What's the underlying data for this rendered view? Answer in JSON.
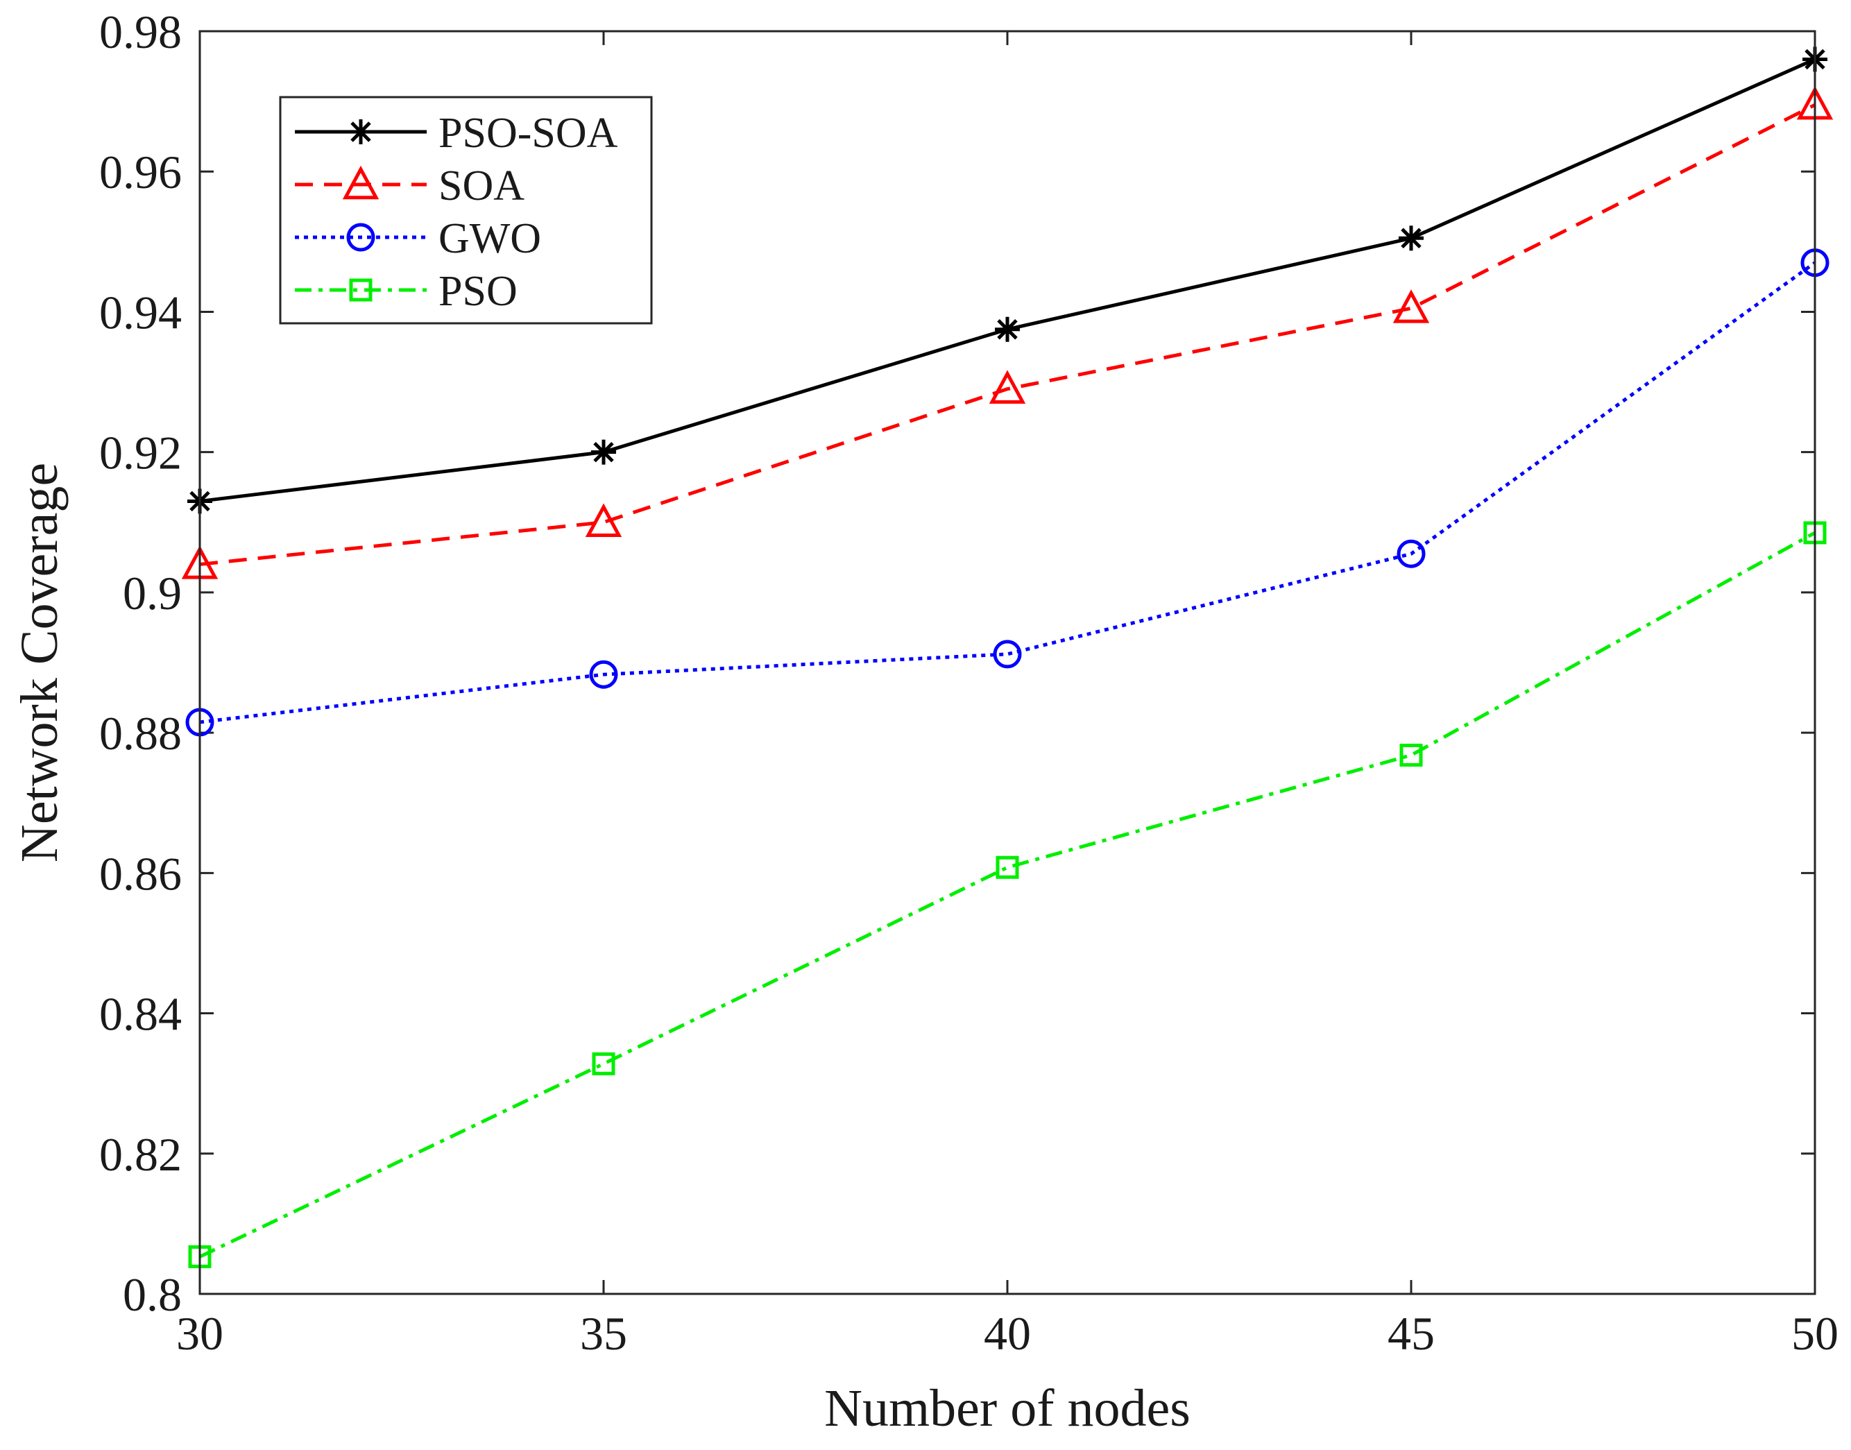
{
  "chart_data": {
    "type": "line",
    "xlabel": "Number of nodes",
    "ylabel": "Network Coverage",
    "x": [
      30,
      35,
      40,
      45,
      50
    ],
    "xlim": [
      30,
      50
    ],
    "ylim": [
      0.8,
      0.98
    ],
    "xticks": [
      30,
      35,
      40,
      45,
      50
    ],
    "xtick_labels": [
      "30",
      "35",
      "40",
      "45",
      "50"
    ],
    "yticks": [
      0.8,
      0.82,
      0.84,
      0.86,
      0.88,
      0.9,
      0.92,
      0.94,
      0.96,
      0.98
    ],
    "ytick_labels": [
      "0.8",
      "0.82",
      "0.84",
      "0.86",
      "0.88",
      "0.9",
      "0.92",
      "0.94",
      "0.96",
      "0.98"
    ],
    "grid": false,
    "legend_position": "top-left",
    "series": [
      {
        "name": "PSO-SOA",
        "values": [
          0.913,
          0.92,
          0.9375,
          0.9505,
          0.976
        ],
        "color": "#000000",
        "dash": "solid",
        "marker": "asterisk"
      },
      {
        "name": "SOA",
        "values": [
          0.904,
          0.91,
          0.929,
          0.9405,
          0.9695
        ],
        "color": "#ff0000",
        "dash": "dashed",
        "marker": "triangle"
      },
      {
        "name": "GWO",
        "values": [
          0.8815,
          0.8883,
          0.8912,
          0.9055,
          0.947
        ],
        "color": "#0000ff",
        "dash": "dotted",
        "marker": "circle"
      },
      {
        "name": "PSO",
        "values": [
          0.8053,
          0.8328,
          0.8608,
          0.8768,
          0.9085
        ],
        "color": "#00ee00",
        "dash": "dashdot",
        "marker": "square"
      }
    ]
  }
}
